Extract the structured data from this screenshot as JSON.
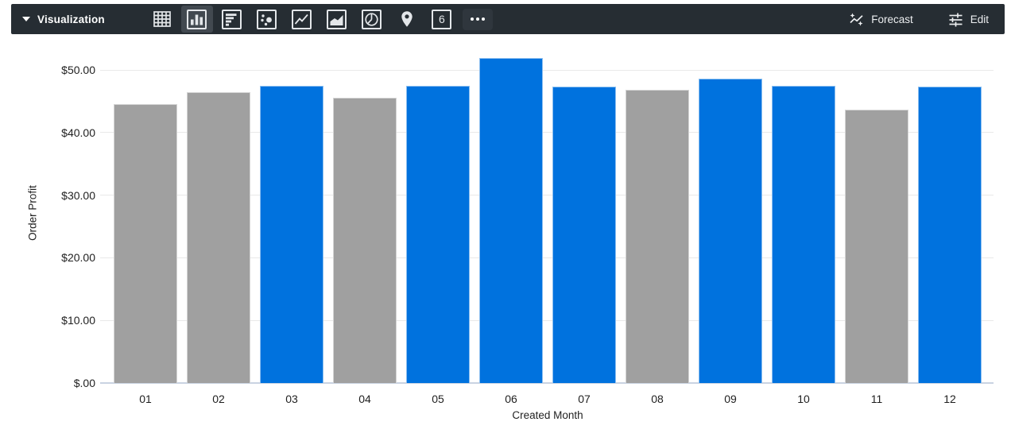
{
  "toolbar": {
    "title": "Visualization",
    "forecast_label": "Forecast",
    "edit_label": "Edit",
    "single_value_glyph": "6",
    "chart_type_icons": [
      "table",
      "column",
      "bar",
      "scatter",
      "line",
      "area",
      "pie",
      "map",
      "single-value",
      "more"
    ],
    "active_chart_type": "column"
  },
  "chart_data": {
    "type": "bar",
    "title": "",
    "xlabel": "Created Month",
    "ylabel": "Order Profit",
    "categories": [
      "01",
      "02",
      "03",
      "04",
      "05",
      "06",
      "07",
      "08",
      "09",
      "10",
      "11",
      "12"
    ],
    "values": [
      44.5,
      46.4,
      47.5,
      45.6,
      47.5,
      51.9,
      47.3,
      46.8,
      48.6,
      47.4,
      43.6,
      47.3
    ],
    "bar_colors": [
      "gray",
      "gray",
      "blue",
      "gray",
      "blue",
      "blue",
      "blue",
      "gray",
      "blue",
      "blue",
      "gray",
      "blue"
    ],
    "palette": {
      "blue": "#0072de",
      "gray": "#a0a0a0"
    },
    "y_ticks": [
      {
        "value": 0,
        "label": "$.00"
      },
      {
        "value": 10,
        "label": "$10.00"
      },
      {
        "value": 20,
        "label": "$20.00"
      },
      {
        "value": 30,
        "label": "$30.00"
      },
      {
        "value": 40,
        "label": "$40.00"
      },
      {
        "value": 50,
        "label": "$50.00"
      }
    ],
    "ylim": [
      0,
      53.6
    ],
    "grid": true,
    "legend": "none"
  },
  "colors": {
    "toolbar_bg": "#262d33",
    "toolbar_active_bg": "#424950",
    "icon_color": "#e3e6e9",
    "gridline": "#e9e9e9",
    "axis_line": "#c9d3e2",
    "text": "#1f1f1f"
  }
}
